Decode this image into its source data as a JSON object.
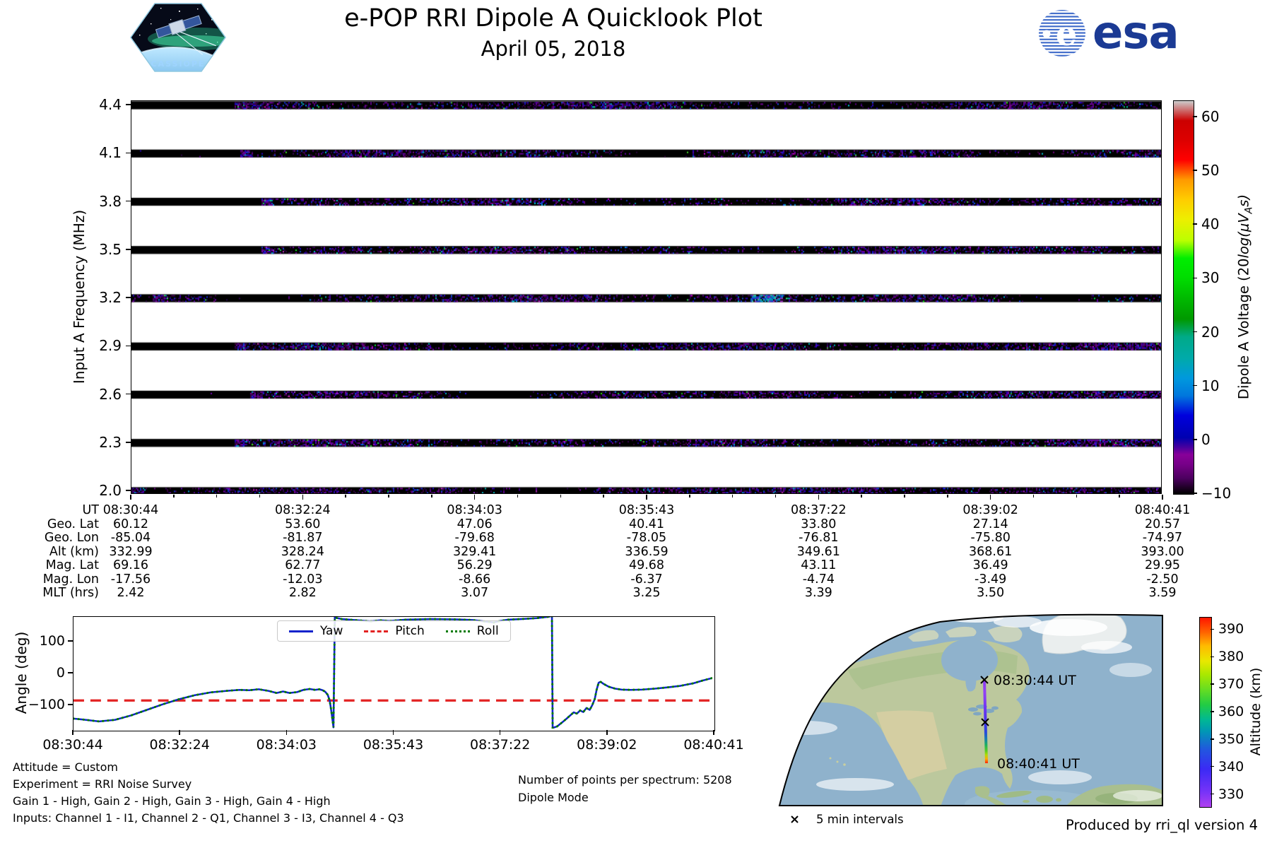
{
  "header": {
    "title": "e-POP RRI Dipole A Quicklook Plot",
    "date": "April 05, 2018",
    "cassiope_label": "CASSIOPE",
    "esa_label": "esa"
  },
  "spectrogram": {
    "ylabel": "Input A Frequency (MHz)",
    "ytick_labels": [
      "4.4",
      "4.1",
      "3.8",
      "3.5",
      "3.2",
      "2.9",
      "2.6",
      "2.3",
      "2.0"
    ],
    "colorbar": {
      "label_plain": "Dipole A Voltage (20",
      "label_italic": "log(μV",
      "label_sub": "A",
      "label_end": "s)",
      "tick_values": [
        60,
        50,
        40,
        30,
        20,
        10,
        0,
        -10
      ]
    }
  },
  "ephemeris": {
    "row_labels": [
      "UT",
      "Geo. Lat",
      "Geo. Lon",
      "Alt (km)",
      "Mag. Lat",
      "Mag. Lon",
      "MLT (hrs)"
    ],
    "columns": [
      [
        "08:30:44",
        "60.12",
        "-85.04",
        "332.99",
        "69.16",
        "-17.56",
        "2.42"
      ],
      [
        "08:32:24",
        "53.60",
        "-81.87",
        "328.24",
        "62.77",
        "-12.03",
        "2.82"
      ],
      [
        "08:34:03",
        "47.06",
        "-79.68",
        "329.41",
        "56.29",
        "-8.66",
        "3.07"
      ],
      [
        "08:35:43",
        "40.41",
        "-78.05",
        "336.59",
        "49.68",
        "-6.37",
        "3.25"
      ],
      [
        "08:37:22",
        "33.80",
        "-76.81",
        "349.61",
        "43.11",
        "-4.74",
        "3.39"
      ],
      [
        "08:39:02",
        "27.14",
        "-75.80",
        "368.61",
        "36.49",
        "-3.49",
        "3.50"
      ],
      [
        "08:40:41",
        "20.57",
        "-74.97",
        "393.00",
        "29.95",
        "-2.50",
        "3.59"
      ]
    ]
  },
  "angle_plot": {
    "ylabel": "Angle (deg)",
    "ytick_values": [
      100,
      0,
      -100
    ],
    "xtick_labels": [
      "08:30:44",
      "08:32:24",
      "08:34:03",
      "08:35:43",
      "08:37:22",
      "08:39:02",
      "08:40:41"
    ],
    "legend": {
      "yaw": "Yaw",
      "pitch": "Pitch",
      "roll": "Roll"
    }
  },
  "map": {
    "start_label": "08:30:44 UT",
    "end_label": "08:40:41 UT",
    "intervals_label": "5 min intervals",
    "colorbar_label": "Altitude (km)",
    "colorbar_tick_values": [
      390,
      380,
      370,
      360,
      350,
      340,
      330
    ]
  },
  "footer": {
    "attitude": "Attitude = Custom",
    "experiment": "Experiment = RRI Noise Survey",
    "gains": "Gain 1 - High, Gain 2 - High, Gain 3 - High, Gain 4 - High",
    "inputs": "Inputs: Channel 1 - I1, Channel 2 - Q1, Channel 3 - I3, Channel 4 - Q3",
    "points": "Number of points per spectrum: 5208",
    "mode": "Dipole Mode",
    "produced": "Produced by rri_ql version 4"
  },
  "chart_data": [
    {
      "id": "spectrogram",
      "type": "heatmap",
      "title": "e-POP RRI Dipole A Quicklook Plot — April 05, 2018",
      "ylabel": "Input A Frequency (MHz)",
      "y_bands_mhz": [
        4.4,
        4.1,
        3.8,
        3.5,
        3.2,
        2.9,
        2.6,
        2.3,
        2.0
      ],
      "x_tick_times": [
        "08:30:44",
        "08:32:24",
        "08:34:03",
        "08:35:43",
        "08:37:22",
        "08:39:02",
        "08:40:41"
      ],
      "value_label": "Dipole A Voltage (20log(μVAs)",
      "value_range": [
        -10,
        63
      ],
      "colorbar_tick_values": [
        60,
        50,
        40,
        30,
        20,
        10,
        0,
        -10
      ],
      "colormap": "nipy_spectral",
      "description": "Nine narrow frequency bands of receiver noise near the noise floor; sparse purple/blue speckle over black, first ~12% of the pass at minimum (solid black) on most bands"
    },
    {
      "id": "attitude",
      "type": "line",
      "ylabel": "Angle (deg)",
      "ylim": [
        -180,
        178
      ],
      "ytick_values": [
        100,
        0,
        -100
      ],
      "xtick_labels": [
        "08:30:44",
        "08:32:24",
        "08:34:03",
        "08:35:43",
        "08:37:22",
        "08:39:02",
        "08:40:41"
      ],
      "legend_position": "upper center",
      "series": [
        {
          "name": "Yaw",
          "color": "#1022cc",
          "style": "solid",
          "points": [
            [
              0,
              -148
            ],
            [
              0.015,
              -151
            ],
            [
              0.04,
              -157
            ],
            [
              0.065,
              -152
            ],
            [
              0.09,
              -138
            ],
            [
              0.115,
              -120
            ],
            [
              0.14,
              -102
            ],
            [
              0.165,
              -86
            ],
            [
              0.19,
              -73
            ],
            [
              0.215,
              -64
            ],
            [
              0.24,
              -59
            ],
            [
              0.26,
              -56
            ],
            [
              0.275,
              -57
            ],
            [
              0.29,
              -54
            ],
            [
              0.305,
              -59
            ],
            [
              0.318,
              -66
            ],
            [
              0.328,
              -61
            ],
            [
              0.338,
              -66
            ],
            [
              0.35,
              -63
            ],
            [
              0.36,
              -56
            ],
            [
              0.37,
              -53
            ],
            [
              0.378,
              -56
            ],
            [
              0.385,
              -54
            ],
            [
              0.39,
              -57
            ],
            [
              0.394,
              -62
            ],
            [
              0.398,
              -72
            ],
            [
              0.401,
              -90
            ],
            [
              0.403,
              -115
            ],
            [
              0.405,
              -145
            ],
            [
              0.407,
              -176
            ],
            [
              0.409,
              176
            ],
            [
              0.42,
              171
            ],
            [
              0.445,
              167
            ],
            [
              0.465,
              164
            ],
            [
              0.48,
              167
            ],
            [
              0.495,
              165
            ],
            [
              0.52,
              169
            ],
            [
              0.56,
              171
            ],
            [
              0.6,
              170
            ],
            [
              0.625,
              168
            ],
            [
              0.645,
              163
            ],
            [
              0.658,
              160
            ],
            [
              0.668,
              165
            ],
            [
              0.68,
              169
            ],
            [
              0.7,
              171
            ],
            [
              0.725,
              174
            ],
            [
              0.745,
              179
            ],
            [
              0.749,
              182
            ],
            [
              0.75,
              -178
            ],
            [
              0.757,
              -173
            ],
            [
              0.765,
              -160
            ],
            [
              0.772,
              -148
            ],
            [
              0.778,
              -137
            ],
            [
              0.783,
              -128
            ],
            [
              0.788,
              -132
            ],
            [
              0.793,
              -122
            ],
            [
              0.798,
              -127
            ],
            [
              0.803,
              -114
            ],
            [
              0.808,
              -120
            ],
            [
              0.812,
              -105
            ],
            [
              0.816,
              -85
            ],
            [
              0.819,
              -55
            ],
            [
              0.822,
              -33
            ],
            [
              0.825,
              -30
            ],
            [
              0.83,
              -37
            ],
            [
              0.838,
              -46
            ],
            [
              0.848,
              -52
            ],
            [
              0.858,
              -55
            ],
            [
              0.872,
              -56
            ],
            [
              0.89,
              -55
            ],
            [
              0.91,
              -52
            ],
            [
              0.93,
              -48
            ],
            [
              0.95,
              -43
            ],
            [
              0.97,
              -35
            ],
            [
              0.985,
              -26
            ],
            [
              1,
              -18
            ]
          ]
        },
        {
          "name": "Pitch",
          "color": "#e32222",
          "style": "dashed",
          "constant": -90
        },
        {
          "name": "Roll",
          "color": "#007a00",
          "style": "dotted",
          "same_as": "Yaw"
        }
      ]
    },
    {
      "id": "ground-track",
      "type": "map-track",
      "projection": "orthographic (North America)",
      "start": {
        "ut": "08:30:44 UT",
        "lat": 60.12,
        "lon": -85.04,
        "alt_km": 332.99
      },
      "end": {
        "ut": "08:40:41 UT",
        "lat": 20.57,
        "lon": -74.97,
        "alt_km": 393.0
      },
      "marker_legend": "5 min intervals",
      "colorbar": {
        "label": "Altitude (km)",
        "tick_values": [
          390,
          380,
          370,
          360,
          350,
          340,
          330
        ],
        "range": [
          325,
          395
        ],
        "colormap": "rainbow"
      }
    }
  ]
}
